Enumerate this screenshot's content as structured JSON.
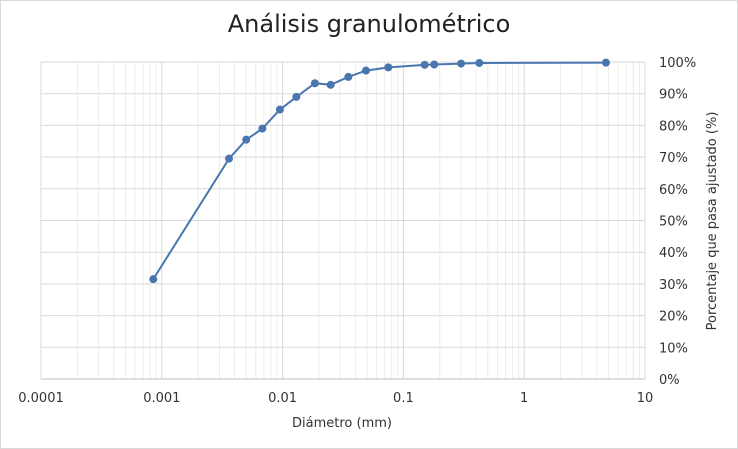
{
  "chart_data": {
    "type": "scatter",
    "title": "Análisis granulométrico",
    "xlabel": "Diámetro (mm)",
    "ylabel": "Porcentaje que pasa ajustado (%)",
    "x_scale": "log",
    "xlim": [
      0.0001,
      10
    ],
    "ylim": [
      0,
      100
    ],
    "x_tick_labels": [
      "0.0001",
      "0.001",
      "0.01",
      "0.1",
      "1",
      "10"
    ],
    "y_tick_labels": [
      "0%",
      "10%",
      "20%",
      "30%",
      "40%",
      "50%",
      "60%",
      "70%",
      "80%",
      "90%",
      "100%"
    ],
    "y_axis_position": "right",
    "grid": true,
    "series_color": "#4a76b0",
    "series": [
      {
        "x": [
          0.00085,
          0.0036,
          0.005,
          0.0068,
          0.0095,
          0.013,
          0.0185,
          0.025,
          0.035,
          0.049,
          0.075,
          0.15,
          0.18,
          0.3,
          0.425,
          4.75
        ],
        "y": [
          31.5,
          69.5,
          75.5,
          79,
          85,
          89,
          93.3,
          92.8,
          95.3,
          97.3,
          98.3,
          99.1,
          99.2,
          99.5,
          99.7,
          99.8
        ]
      }
    ]
  }
}
